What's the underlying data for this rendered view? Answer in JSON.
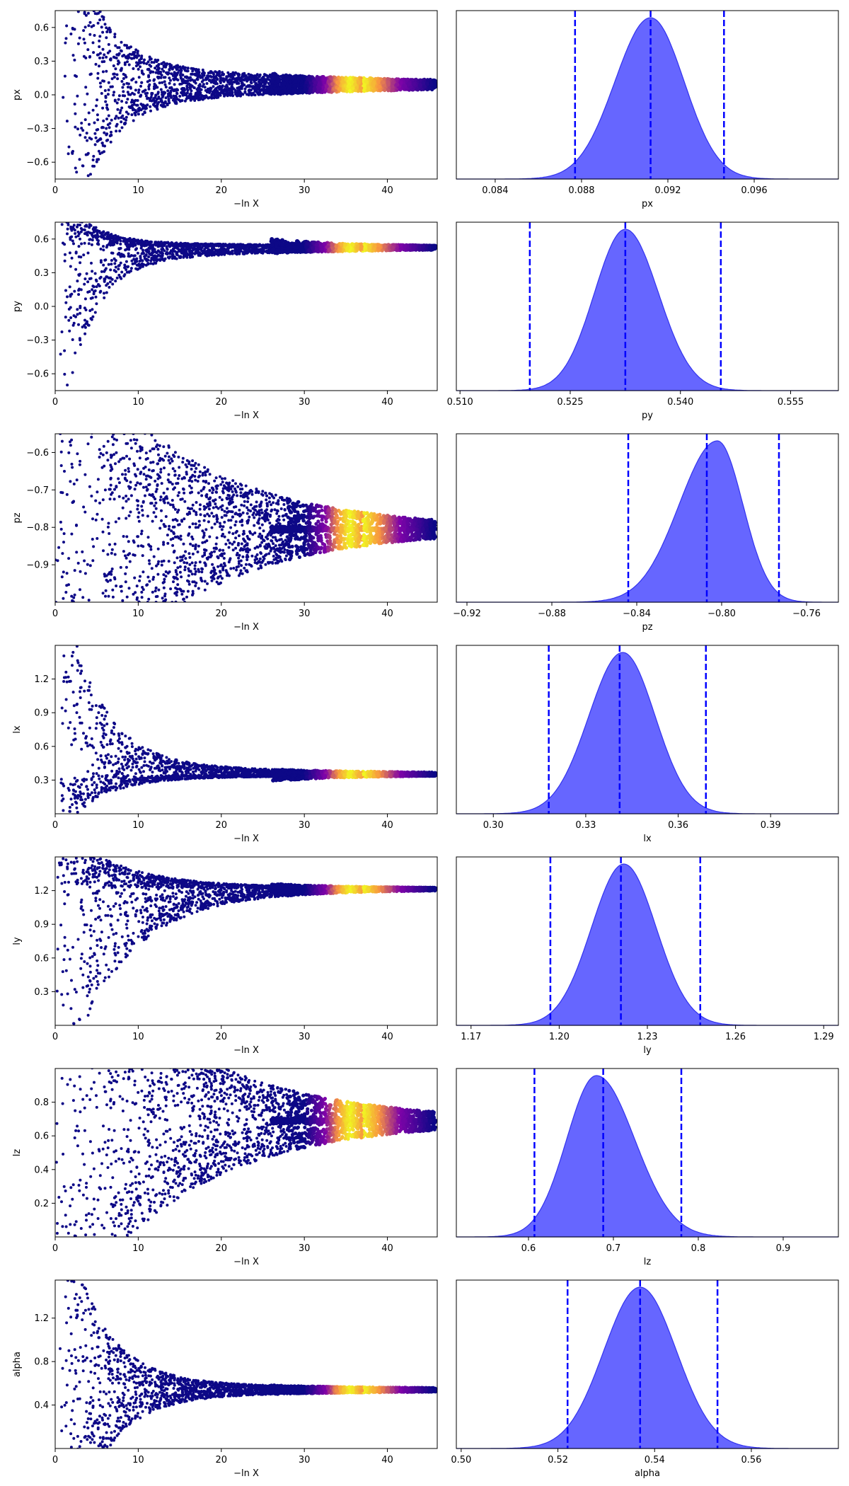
{
  "chart_data": {
    "type": "trace_plot",
    "rows": [
      {
        "param": "px",
        "trace": {
          "xlabel": "−ln X",
          "ylabel": "px",
          "xlim": [
            0,
            46
          ],
          "ylim": [
            -0.75,
            0.75
          ],
          "xticks": [
            0,
            10,
            20,
            30,
            40
          ],
          "yticks": [
            -0.6,
            -0.3,
            0.0,
            0.3,
            0.6
          ],
          "ytick_labels": [
            "−0.6",
            "−0.3",
            "0.0",
            "0.3",
            "0.6"
          ],
          "converge": 0.0913,
          "wide_clip": true,
          "x_start": 0.8,
          "decay": 4.0,
          "floor": 0.15,
          "upper_frac": 1.0,
          "lower_frac": 1.0
        },
        "posterior": {
          "xlabel": "px",
          "xlim": [
            0.0822,
            0.0999
          ],
          "xticks": [
            0.084,
            0.088,
            0.092,
            0.096
          ],
          "xtick_labels": [
            "0.084",
            "0.088",
            "0.092",
            "0.096"
          ],
          "mean": 0.0912,
          "sd_left": 0.00165,
          "sd_right": 0.00155,
          "skew_bump": 0.0,
          "quantiles": [
            0.0877,
            0.0912,
            0.0946
          ]
        }
      },
      {
        "param": "py",
        "trace": {
          "xlabel": "−ln X",
          "ylabel": "py",
          "xlim": [
            0,
            46
          ],
          "ylim": [
            -0.75,
            0.75
          ],
          "xticks": [
            0,
            10,
            20,
            30,
            40
          ],
          "yticks": [
            -0.6,
            -0.3,
            0.0,
            0.3,
            0.6
          ],
          "ytick_labels": [
            "−0.6",
            "−0.3",
            "0.0",
            "0.3",
            "0.6"
          ],
          "converge": 0.533,
          "wide_clip": true,
          "x_start": 0.5,
          "decay": 3.5,
          "floor": 0.1,
          "upper_frac": 0.3,
          "lower_frac": 1.0
        },
        "posterior": {
          "xlabel": "py",
          "xlim": [
            0.5095,
            0.5615
          ],
          "xticks": [
            0.51,
            0.525,
            0.54,
            0.555
          ],
          "xtick_labels": [
            "0.510",
            "0.525",
            "0.540",
            "0.555"
          ],
          "mean": 0.5325,
          "sd_left": 0.0042,
          "sd_right": 0.0045,
          "skew_bump": 0.0,
          "quantiles": [
            0.5195,
            0.5325,
            0.5455
          ]
        }
      },
      {
        "param": "pz",
        "trace": {
          "xlabel": "−ln X",
          "ylabel": "pz",
          "xlim": [
            0,
            46
          ],
          "ylim": [
            -1.0,
            -0.55
          ],
          "xticks": [
            0,
            10,
            20,
            30,
            40
          ],
          "yticks": [
            -0.9,
            -0.8,
            -0.7,
            -0.6
          ],
          "ytick_labels": [
            "−0.9",
            "−0.8",
            "−0.7",
            "−0.6"
          ],
          "converge": -0.805,
          "wide_clip": true,
          "x_start": 0.0,
          "decay": 14.0,
          "floor": 0.04,
          "upper_frac": 1.0,
          "lower_frac": 1.0
        },
        "posterior": {
          "xlabel": "pz",
          "xlim": [
            -0.925,
            -0.745
          ],
          "xticks": [
            -0.92,
            -0.88,
            -0.84,
            -0.8,
            -0.76
          ],
          "xtick_labels": [
            "−0.92",
            "−0.88",
            "−0.84",
            "−0.80",
            "−0.76"
          ],
          "mean": -0.802,
          "sd_left": 0.018,
          "sd_right": 0.012,
          "skew_bump": 0.0,
          "quantiles": [
            -0.844,
            -0.807,
            -0.773
          ]
        }
      },
      {
        "param": "lx",
        "trace": {
          "xlabel": "−ln X",
          "ylabel": "lx",
          "xlim": [
            0,
            46
          ],
          "ylim": [
            0.0,
            1.5
          ],
          "xticks": [
            0,
            10,
            20,
            30,
            40
          ],
          "yticks": [
            0.3,
            0.6,
            0.9,
            1.2
          ],
          "ytick_labels": [
            "0.3",
            "0.6",
            "0.9",
            "1.2"
          ],
          "converge": 0.345,
          "wide_clip": true,
          "x_start": 0.5,
          "decay": 4.5,
          "floor": 0.08,
          "upper_frac": 1.0,
          "lower_frac": 0.3
        },
        "posterior": {
          "xlabel": "lx",
          "xlim": [
            0.288,
            0.412
          ],
          "xticks": [
            0.3,
            0.33,
            0.36,
            0.39
          ],
          "xtick_labels": [
            "0.30",
            "0.33",
            "0.36",
            "0.39"
          ],
          "mean": 0.342,
          "sd_left": 0.011,
          "sd_right": 0.0105,
          "skew_bump": 0.0,
          "quantiles": [
            0.318,
            0.341,
            0.369
          ]
        }
      },
      {
        "param": "ly",
        "trace": {
          "xlabel": "−ln X",
          "ylabel": "ly",
          "xlim": [
            0,
            46
          ],
          "ylim": [
            0.0,
            1.5
          ],
          "xticks": [
            0,
            10,
            20,
            30,
            40
          ],
          "yticks": [
            0.3,
            0.6,
            0.9,
            1.2
          ],
          "ytick_labels": [
            "0.3",
            "0.6",
            "0.9",
            "1.2"
          ],
          "converge": 1.22,
          "wide_clip": true,
          "x_start": 0.0,
          "decay": 7.0,
          "floor": 0.06,
          "upper_frac": 0.3,
          "lower_frac": 1.0
        },
        "posterior": {
          "xlabel": "ly",
          "xlim": [
            1.165,
            1.295
          ],
          "xticks": [
            1.17,
            1.2,
            1.23,
            1.26,
            1.29
          ],
          "xtick_labels": [
            "1.17",
            "1.20",
            "1.23",
            "1.26",
            "1.29"
          ],
          "mean": 1.222,
          "sd_left": 0.011,
          "sd_right": 0.011,
          "skew_bump": 0.0,
          "quantiles": [
            1.197,
            1.221,
            1.248
          ]
        }
      },
      {
        "param": "lz",
        "trace": {
          "xlabel": "−ln X",
          "ylabel": "lz",
          "xlim": [
            0,
            46
          ],
          "ylim": [
            0.0,
            1.0
          ],
          "xticks": [
            0,
            10,
            20,
            30,
            40
          ],
          "yticks": [
            0.2,
            0.4,
            0.6,
            0.8
          ],
          "ytick_labels": [
            "0.2",
            "0.4",
            "0.6",
            "0.8"
          ],
          "converge": 0.69,
          "wide_clip": true,
          "x_start": 0.0,
          "decay": 14.0,
          "floor": 0.04,
          "upper_frac": 1.0,
          "lower_frac": 1.0
        },
        "posterior": {
          "xlabel": "lz",
          "xlim": [
            0.515,
            0.965
          ],
          "xticks": [
            0.6,
            0.7,
            0.8,
            0.9
          ],
          "xtick_labels": [
            "0.6",
            "0.7",
            "0.8",
            "0.9"
          ],
          "mean": 0.68,
          "sd_left": 0.035,
          "sd_right": 0.045,
          "skew_bump": 0.0,
          "quantiles": [
            0.607,
            0.688,
            0.78
          ]
        }
      },
      {
        "param": "alpha",
        "trace": {
          "xlabel": "−ln X",
          "ylabel": "alpha",
          "xlim": [
            0,
            46
          ],
          "ylim": [
            0.0,
            1.55
          ],
          "xticks": [
            0,
            10,
            20,
            30,
            40
          ],
          "yticks": [
            0.4,
            0.8,
            1.2
          ],
          "ytick_labels": [
            "0.4",
            "0.8",
            "1.2"
          ],
          "converge": 0.54,
          "wide_clip": true,
          "x_start": 0.5,
          "decay": 4.5,
          "floor": 0.06,
          "upper_frac": 1.0,
          "lower_frac": 1.0
        },
        "posterior": {
          "xlabel": "alpha",
          "xlim": [
            0.499,
            0.578
          ],
          "xticks": [
            0.5,
            0.52,
            0.54,
            0.56
          ],
          "xtick_labels": [
            "0.50",
            "0.52",
            "0.54",
            "0.56"
          ],
          "mean": 0.537,
          "sd_left": 0.0075,
          "sd_right": 0.0075,
          "skew_bump": 0.0,
          "quantiles": [
            0.522,
            0.537,
            0.553
          ]
        }
      }
    ],
    "colors": {
      "trace_cold": "#0d0887",
      "trace_mid": "#7e03a8",
      "trace_warm": "#f89540",
      "trace_hot": "#f0f921",
      "posterior_fill": "#6666ff",
      "posterior_edge": "#3333ee",
      "quantile_line": "#0000ff"
    }
  }
}
